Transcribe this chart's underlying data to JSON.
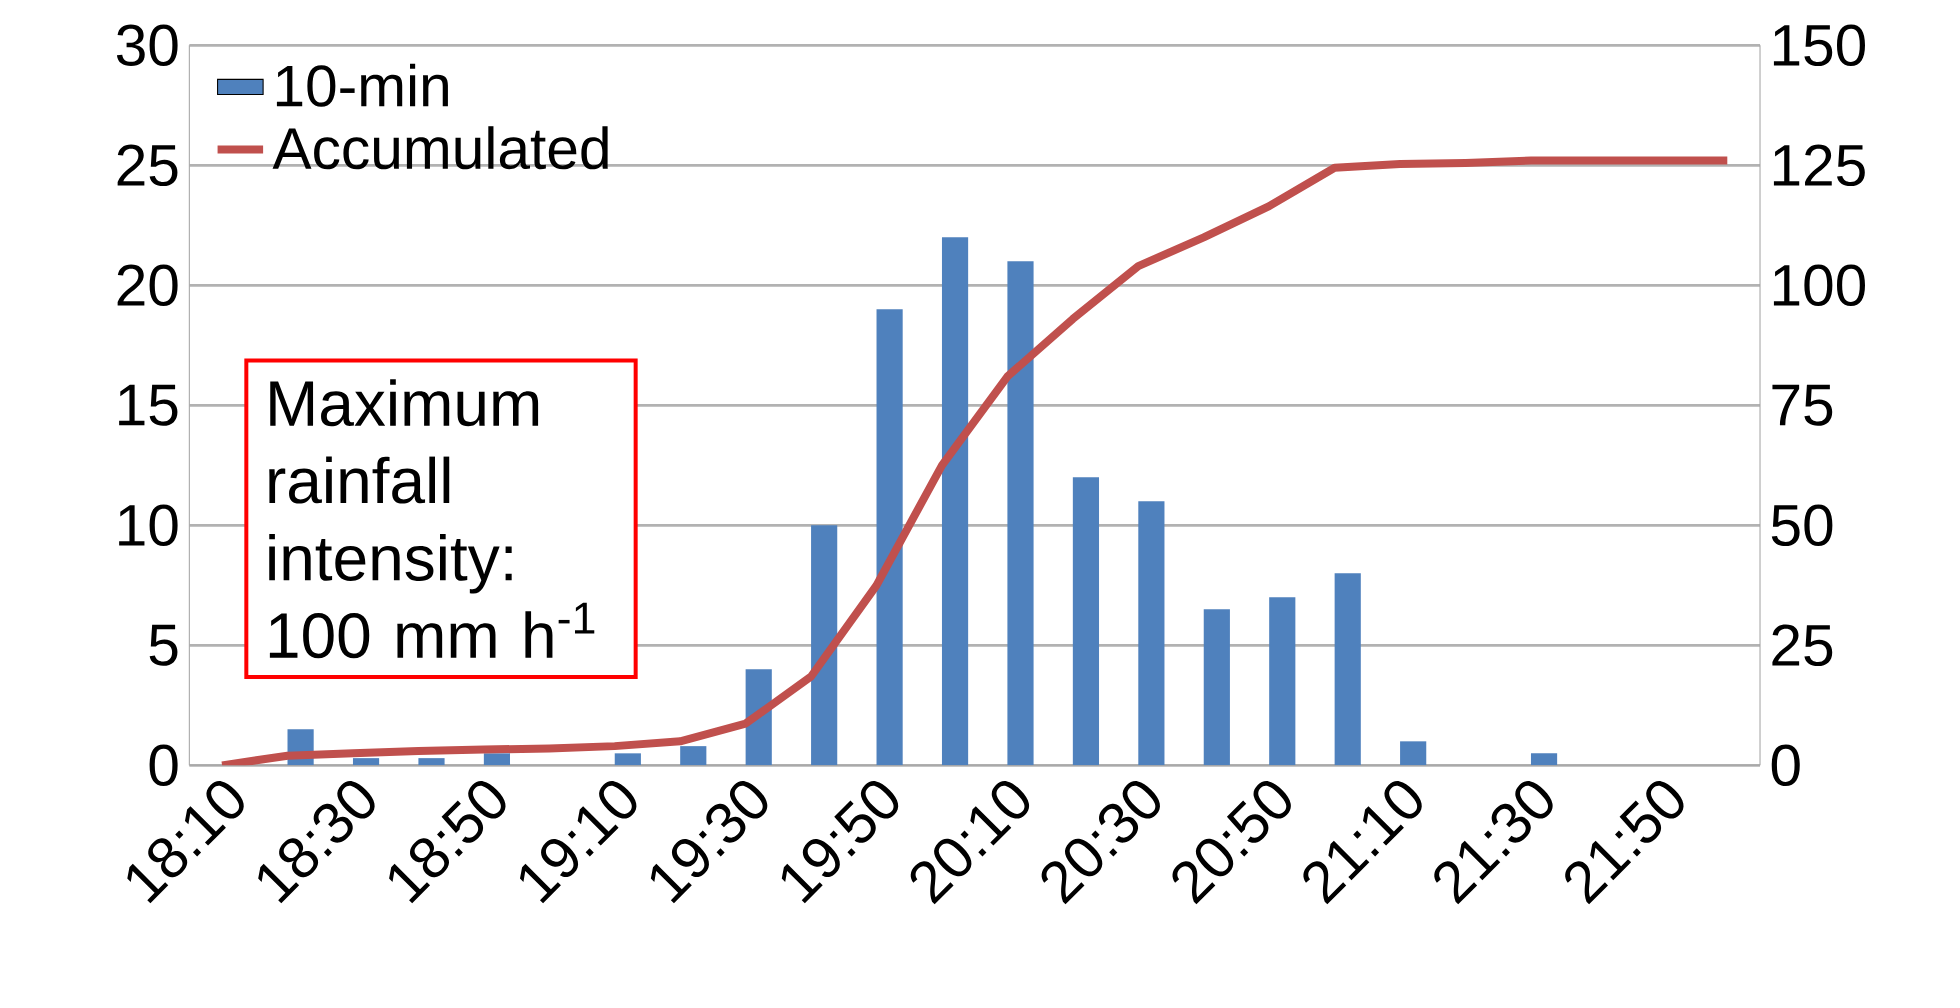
{
  "chart_data": {
    "type": "bar",
    "categories": [
      "18:10",
      null,
      "18:30",
      null,
      "18:50",
      null,
      "19:10",
      null,
      "19:30",
      null,
      "19:50",
      null,
      "20:10",
      null,
      "20:30",
      null,
      "20:50",
      null,
      "21:10",
      null,
      "21:30",
      null,
      "21:50",
      null
    ],
    "series": [
      {
        "name": "10-min",
        "color": "#4f81bd",
        "values": [
          0,
          1.5,
          0.3,
          0.3,
          0.5,
          0,
          0.5,
          0.8,
          4,
          10,
          19,
          22,
          21,
          12,
          11,
          6.5,
          7,
          8,
          1,
          0,
          0.5,
          0,
          0,
          0
        ]
      },
      {
        "name": "Accumulated",
        "type": "line",
        "axis": "y2",
        "color": "#c0504d",
        "values": [
          0,
          2,
          2.5,
          3,
          3.3,
          3.5,
          4,
          5,
          8.7,
          18.5,
          37.5,
          62.5,
          81,
          93,
          104,
          110,
          116.5,
          124.5,
          125.3,
          125.5,
          126,
          126,
          126,
          126
        ]
      }
    ],
    "ylim": [
      0,
      30
    ],
    "yticks": [
      0,
      5,
      10,
      15,
      20,
      25,
      30
    ],
    "y2lim": [
      0,
      150
    ],
    "y2ticks": [
      0,
      25,
      50,
      75,
      100,
      125,
      150
    ],
    "grid": "y",
    "legend": "top left",
    "annotations": [
      "Maximum rainfall intensity: 100 mm h$^{-1}$"
    ]
  }
}
